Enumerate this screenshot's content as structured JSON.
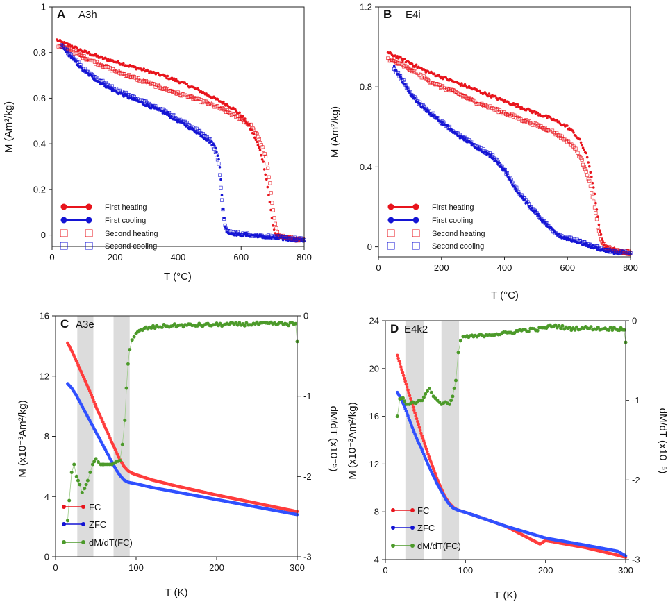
{
  "colors": {
    "red": "#e8141c",
    "blue": "#1414d4",
    "green": "#4c9a2a",
    "band": "#dcdcdc",
    "red_fc": "#ff3c3c",
    "blue_zfc": "#3050ff"
  },
  "panels": {
    "A": {
      "letter": "A",
      "sample": "A3h",
      "xlabel": "T (°C)",
      "ylabel": "M (Am²/kg)"
    },
    "B": {
      "letter": "B",
      "sample": "E4i",
      "xlabel": "T (°C)",
      "ylabel": "M (Am²/kg)"
    },
    "C": {
      "letter": "C",
      "sample": "A3e",
      "xlabel": "T (K)",
      "ylabel": "M (x10⁻³Am²/kg)",
      "ylabel2": "dM/dT (x10⁻⁵)"
    },
    "D": {
      "letter": "D",
      "sample": "E4k2",
      "xlabel": "T (K)",
      "ylabel": "M (x10⁻³Am²/kg)",
      "ylabel2": "dM/dT (x10⁻⁵)"
    }
  },
  "legend_top": {
    "first_heating": "First heating",
    "first_cooling": "First cooling",
    "second_heating": "Second heating",
    "second_cooling": "Second cooling"
  },
  "legend_bottom": {
    "fc": "FC",
    "zfc": "ZFC",
    "dmdt": "dM/dT(FC)"
  },
  "chart_data": [
    {
      "panel": "A",
      "type": "scatter",
      "title": "A3h",
      "xlabel": "T (°C)",
      "ylabel": "M (Am²/kg)",
      "xlim": [
        0,
        800
      ],
      "ylim": [
        -0.05,
        1.0
      ],
      "xticks": [
        0,
        200,
        400,
        600,
        800
      ],
      "yticks": [
        0,
        0.2,
        0.4,
        0.6,
        0.8,
        1
      ],
      "ytick_labels": [
        "0",
        "0.2",
        "0.4",
        "0.6",
        "0.8",
        "1"
      ],
      "series": [
        {
          "name": "First heating",
          "x": [
            15,
            30,
            60,
            100,
            150,
            200,
            250,
            300,
            350,
            400,
            450,
            500,
            550,
            580,
            600,
            620,
            640,
            660,
            670,
            680,
            690,
            700,
            705,
            710,
            720,
            740,
            760,
            780,
            800
          ],
          "y": [
            0.855,
            0.845,
            0.83,
            0.805,
            0.78,
            0.76,
            0.74,
            0.72,
            0.7,
            0.675,
            0.645,
            0.61,
            0.575,
            0.55,
            0.525,
            0.49,
            0.44,
            0.37,
            0.32,
            0.25,
            0.15,
            0.05,
            0.02,
            0.0,
            -0.005,
            -0.01,
            -0.015,
            -0.02,
            -0.025
          ]
        },
        {
          "name": "First cooling",
          "x": [
            800,
            760,
            720,
            680,
            640,
            600,
            560,
            550,
            545,
            540,
            535,
            530,
            520,
            510,
            500,
            480,
            450,
            400,
            350,
            300,
            250,
            200,
            150,
            100,
            60,
            30
          ],
          "y": [
            -0.025,
            -0.02,
            -0.015,
            -0.01,
            0.0,
            0.0,
            0.01,
            0.03,
            0.08,
            0.15,
            0.25,
            0.33,
            0.38,
            0.4,
            0.41,
            0.43,
            0.46,
            0.5,
            0.54,
            0.57,
            0.6,
            0.63,
            0.67,
            0.72,
            0.78,
            0.83
          ]
        },
        {
          "name": "Second heating",
          "x": [
            20,
            40,
            60,
            100,
            150,
            200,
            250,
            300,
            350,
            400,
            450,
            500,
            550,
            600,
            630,
            650,
            670,
            680,
            690,
            700,
            710,
            720,
            740,
            760,
            780,
            800
          ],
          "y": [
            0.83,
            0.82,
            0.81,
            0.78,
            0.75,
            0.72,
            0.695,
            0.67,
            0.645,
            0.62,
            0.6,
            0.575,
            0.545,
            0.51,
            0.48,
            0.44,
            0.38,
            0.33,
            0.24,
            0.12,
            0.03,
            0.0,
            -0.01,
            -0.015,
            -0.02,
            -0.02
          ]
        },
        {
          "name": "Second cooling",
          "x": [
            800,
            760,
            720,
            680,
            640,
            600,
            560,
            550,
            545,
            540,
            535,
            530,
            520,
            510,
            500,
            480,
            450,
            400,
            350,
            300,
            250,
            200,
            150,
            100,
            60,
            30
          ],
          "y": [
            -0.02,
            -0.015,
            -0.01,
            -0.005,
            0.0,
            0.005,
            0.015,
            0.03,
            0.07,
            0.14,
            0.22,
            0.3,
            0.36,
            0.4,
            0.42,
            0.44,
            0.47,
            0.51,
            0.55,
            0.58,
            0.61,
            0.64,
            0.68,
            0.73,
            0.79,
            0.83
          ]
        }
      ]
    },
    {
      "panel": "B",
      "type": "scatter",
      "title": "E4i",
      "xlabel": "T (°C)",
      "ylabel": "M (Am²/kg)",
      "xlim": [
        0,
        800
      ],
      "ylim": [
        -0.05,
        1.2
      ],
      "xticks": [
        0,
        200,
        400,
        600,
        800
      ],
      "yticks": [
        0,
        0.4,
        0.8,
        1.2
      ],
      "ytick_labels": [
        "0",
        "0.4",
        "0.8",
        "1.2"
      ],
      "series": [
        {
          "name": "First heating",
          "x": [
            30,
            60,
            100,
            150,
            200,
            250,
            300,
            350,
            400,
            450,
            500,
            550,
            600,
            620,
            640,
            660,
            670,
            680,
            690,
            700,
            710,
            720,
            740,
            760,
            780,
            800
          ],
          "y": [
            0.97,
            0.95,
            0.92,
            0.88,
            0.85,
            0.82,
            0.79,
            0.76,
            0.73,
            0.7,
            0.67,
            0.64,
            0.6,
            0.57,
            0.53,
            0.46,
            0.4,
            0.32,
            0.22,
            0.1,
            0.03,
            0.0,
            -0.01,
            -0.02,
            -0.03,
            -0.035
          ]
        },
        {
          "name": "First cooling",
          "x": [
            800,
            760,
            720,
            700,
            680,
            660,
            640,
            620,
            600,
            580,
            560,
            540,
            520,
            500,
            480,
            460,
            440,
            420,
            400,
            380,
            360,
            340,
            320,
            300,
            280,
            260,
            240,
            220,
            200,
            180,
            160,
            140,
            120,
            100,
            80,
            60,
            50
          ],
          "y": [
            -0.035,
            -0.03,
            -0.02,
            -0.01,
            0.0,
            0.01,
            0.02,
            0.03,
            0.04,
            0.05,
            0.07,
            0.1,
            0.13,
            0.17,
            0.2,
            0.24,
            0.28,
            0.33,
            0.38,
            0.42,
            0.45,
            0.47,
            0.49,
            0.51,
            0.53,
            0.55,
            0.57,
            0.6,
            0.62,
            0.65,
            0.67,
            0.7,
            0.73,
            0.77,
            0.82,
            0.87,
            0.9
          ]
        },
        {
          "name": "Second heating",
          "x": [
            30,
            60,
            100,
            150,
            200,
            250,
            300,
            350,
            400,
            450,
            500,
            550,
            580,
            600,
            620,
            640,
            660,
            670,
            680,
            690,
            700,
            710,
            720,
            740,
            760,
            780,
            800
          ],
          "y": [
            0.94,
            0.92,
            0.89,
            0.84,
            0.8,
            0.77,
            0.73,
            0.7,
            0.67,
            0.64,
            0.61,
            0.58,
            0.55,
            0.53,
            0.5,
            0.45,
            0.38,
            0.32,
            0.25,
            0.16,
            0.07,
            0.02,
            0.0,
            -0.01,
            -0.02,
            -0.025,
            -0.03
          ]
        },
        {
          "name": "Second cooling",
          "x": [
            800,
            760,
            720,
            700,
            680,
            660,
            640,
            620,
            600,
            580,
            560,
            540,
            520,
            500,
            480,
            460,
            440,
            420,
            400,
            380,
            360,
            340,
            320,
            300,
            280,
            260,
            240,
            220,
            200,
            180,
            160,
            140,
            120,
            100,
            80,
            60,
            50
          ],
          "y": [
            -0.03,
            -0.025,
            -0.015,
            -0.005,
            0.005,
            0.015,
            0.025,
            0.035,
            0.045,
            0.055,
            0.075,
            0.105,
            0.135,
            0.175,
            0.205,
            0.245,
            0.285,
            0.335,
            0.385,
            0.425,
            0.455,
            0.475,
            0.495,
            0.515,
            0.535,
            0.555,
            0.575,
            0.605,
            0.625,
            0.655,
            0.675,
            0.705,
            0.735,
            0.775,
            0.825,
            0.875,
            0.89
          ]
        }
      ]
    },
    {
      "panel": "C",
      "type": "scatter",
      "title": "A3e",
      "xlabel": "T (K)",
      "ylabel": "M (x10⁻³Am²/kg)",
      "ylabel2": "dM/dT (x10⁻⁵)",
      "xlim": [
        0,
        300
      ],
      "ylim": [
        0,
        16
      ],
      "ylim2": [
        -3,
        0
      ],
      "xticks": [
        0,
        100,
        200,
        300
      ],
      "yticks": [
        0,
        4,
        8,
        12,
        16
      ],
      "yticks2": [
        0,
        -1,
        -2,
        -3
      ],
      "bands": [
        [
          27,
          47
        ],
        [
          72,
          92
        ]
      ],
      "series": [
        {
          "name": "FC",
          "axis": "left",
          "x": [
            15,
            20,
            25,
            30,
            35,
            40,
            45,
            50,
            55,
            60,
            65,
            70,
            75,
            80,
            85,
            90,
            95,
            100,
            120,
            150,
            200,
            250,
            300
          ],
          "y": [
            14.2,
            13.7,
            13.1,
            12.5,
            11.9,
            11.3,
            10.7,
            10.0,
            9.4,
            8.8,
            8.2,
            7.6,
            7.0,
            6.45,
            6.0,
            5.7,
            5.55,
            5.45,
            5.1,
            4.7,
            4.1,
            3.55,
            3.0
          ]
        },
        {
          "name": "ZFC",
          "axis": "left",
          "x": [
            15,
            20,
            25,
            30,
            35,
            40,
            45,
            50,
            55,
            60,
            65,
            70,
            75,
            80,
            85,
            90,
            95,
            100,
            120,
            150,
            200,
            250,
            300
          ],
          "y": [
            11.5,
            11.2,
            10.8,
            10.3,
            9.8,
            9.3,
            8.8,
            8.3,
            7.8,
            7.3,
            6.8,
            6.3,
            5.8,
            5.4,
            5.1,
            4.95,
            4.9,
            4.85,
            4.6,
            4.3,
            3.8,
            3.3,
            2.8
          ]
        },
        {
          "name": "dM/dT(FC)",
          "axis": "right",
          "x": [
            15,
            17,
            20,
            23,
            26,
            30,
            33,
            36,
            40,
            43,
            46,
            50,
            53,
            56,
            60,
            65,
            70,
            75,
            80,
            83,
            86,
            88,
            90,
            92,
            95,
            100,
            110,
            130,
            150,
            200,
            250,
            298,
            300
          ],
          "y": [
            -2.55,
            -2.3,
            -1.95,
            -1.85,
            -2.0,
            -2.1,
            -2.2,
            -2.15,
            -2.05,
            -1.95,
            -1.85,
            -1.78,
            -1.82,
            -1.85,
            -1.85,
            -1.85,
            -1.85,
            -1.82,
            -1.8,
            -1.6,
            -1.3,
            -0.9,
            -0.6,
            -0.42,
            -0.3,
            -0.22,
            -0.16,
            -0.13,
            -0.12,
            -0.11,
            -0.1,
            -0.1,
            -0.32
          ]
        }
      ]
    },
    {
      "panel": "D",
      "type": "scatter",
      "title": "E4k2",
      "xlabel": "T (K)",
      "ylabel": "M (x10⁻³Am²/kg)",
      "ylabel2": "dM/dT (x10⁻⁵)",
      "xlim": [
        0,
        300
      ],
      "ylim": [
        4,
        24
      ],
      "ylim2": [
        -3,
        0
      ],
      "xticks": [
        0,
        100,
        200,
        300
      ],
      "yticks": [
        4,
        8,
        12,
        16,
        20,
        24
      ],
      "yticks2": [
        0,
        -1,
        -2,
        -3
      ],
      "bands": [
        [
          25,
          48
        ],
        [
          70,
          92
        ]
      ],
      "series": [
        {
          "name": "FC",
          "axis": "left",
          "x": [
            15,
            20,
            25,
            30,
            35,
            40,
            45,
            50,
            55,
            60,
            65,
            70,
            75,
            80,
            85,
            90,
            95,
            100,
            120,
            150,
            193,
            200,
            250,
            300
          ],
          "y": [
            21.1,
            20.0,
            18.9,
            17.8,
            16.7,
            15.6,
            14.5,
            13.5,
            12.5,
            11.6,
            10.7,
            9.9,
            9.2,
            8.7,
            8.35,
            8.15,
            8.05,
            7.95,
            7.5,
            6.8,
            5.3,
            5.6,
            5.0,
            4.2
          ]
        },
        {
          "name": "ZFC",
          "axis": "left",
          "x": [
            15,
            20,
            25,
            30,
            35,
            40,
            45,
            50,
            55,
            60,
            65,
            70,
            75,
            80,
            85,
            90,
            95,
            100,
            120,
            150,
            200,
            250,
            290,
            300
          ],
          "y": [
            18.0,
            17.4,
            16.6,
            15.7,
            14.8,
            14.0,
            13.3,
            12.5,
            11.7,
            11.0,
            10.3,
            9.7,
            9.1,
            8.6,
            8.3,
            8.15,
            8.05,
            7.95,
            7.5,
            6.8,
            5.8,
            5.2,
            4.7,
            4.3
          ]
        },
        {
          "name": "dM/dT(FC)",
          "axis": "right",
          "x": [
            15,
            18,
            22,
            26,
            30,
            34,
            38,
            42,
            46,
            50,
            55,
            60,
            65,
            70,
            75,
            80,
            84,
            88,
            91,
            94,
            97,
            100,
            110,
            130,
            150,
            170,
            190,
            210,
            230,
            250,
            270,
            290,
            298,
            300
          ],
          "y": [
            -1.2,
            -0.98,
            -0.97,
            -1.05,
            -1.05,
            -1.02,
            -1.04,
            -1.0,
            -1.0,
            -0.92,
            -0.85,
            -0.95,
            -1.0,
            -1.05,
            -1.02,
            -1.05,
            -0.95,
            -0.75,
            -0.4,
            -0.25,
            -0.2,
            -0.2,
            -0.2,
            -0.17,
            -0.16,
            -0.12,
            -0.11,
            -0.06,
            -0.1,
            -0.09,
            -0.1,
            -0.1,
            -0.1,
            -0.27
          ]
        }
      ]
    }
  ]
}
